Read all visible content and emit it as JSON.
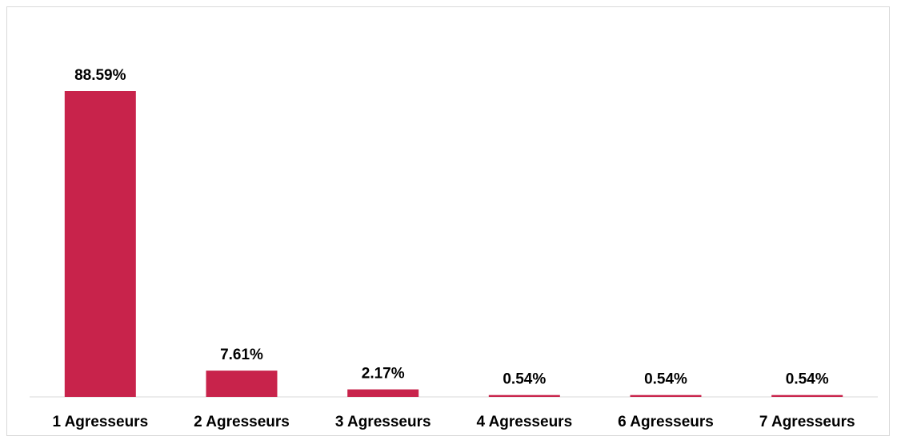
{
  "chart_data": {
    "type": "bar",
    "title": "",
    "xlabel": "",
    "ylabel": "",
    "categories": [
      "1 Agresseurs",
      "2 Agresseurs",
      "3 Agresseurs",
      "4 Agresseurs",
      "6 Agresseurs",
      "7 Agresseurs"
    ],
    "values": [
      88.59,
      7.61,
      2.17,
      0.54,
      0.54,
      0.54
    ],
    "data_labels": [
      "88.59%",
      "7.61%",
      "2.17%",
      "0.54%",
      "0.54%",
      "0.54%"
    ],
    "ylim": [
      0,
      88.59
    ],
    "grid": false,
    "legend": "none",
    "bar_color": "#c8234b",
    "axis_color": "#d9d9d9"
  }
}
